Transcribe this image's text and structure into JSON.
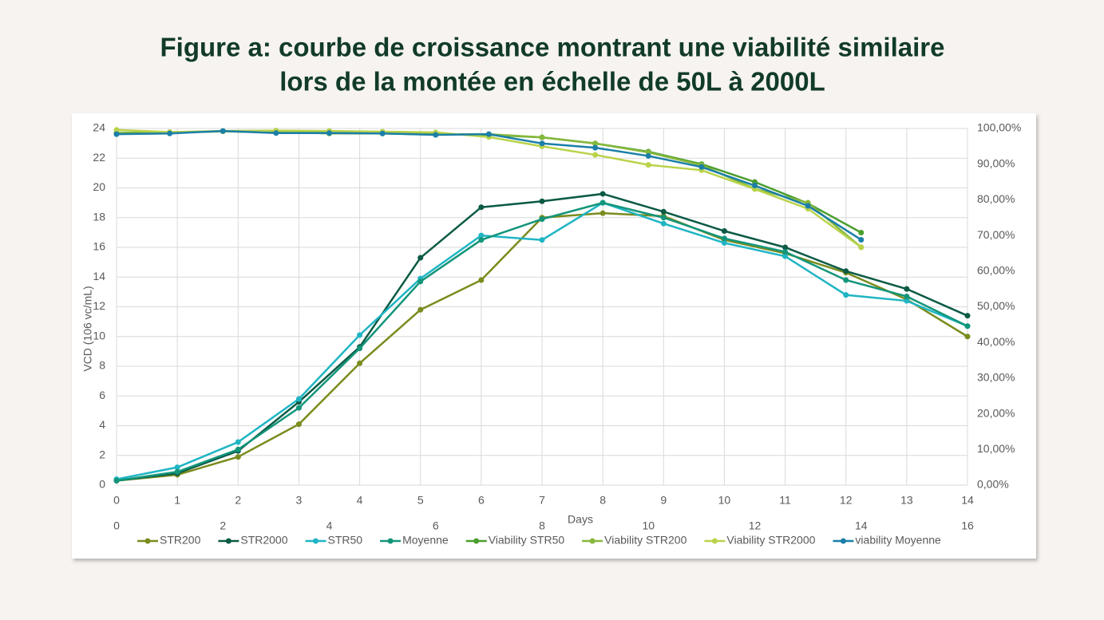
{
  "chart_data": {
    "type": "line",
    "title": [
      "Figure a: courbe de croissance montrant une viabilité similaire",
      "lors de la montée en échelle de 50L à 2000L"
    ],
    "ylabel": "VCD (106 vc/mL)",
    "xlabel": "Days",
    "x": [
      0,
      1,
      2,
      3,
      4,
      5,
      6,
      7,
      8,
      9,
      10,
      11,
      12,
      13,
      14
    ],
    "xlim": [
      0,
      14
    ],
    "xticks": [
      0,
      1,
      2,
      3,
      4,
      5,
      6,
      7,
      8,
      9,
      10,
      11,
      12,
      13,
      14
    ],
    "x2lim": [
      0,
      16
    ],
    "x2ticks": [
      0,
      2,
      4,
      6,
      8,
      10,
      12,
      14,
      16
    ],
    "ylim": [
      0,
      24
    ],
    "yticks": [
      0,
      2,
      4,
      6,
      8,
      10,
      12,
      14,
      16,
      18,
      20,
      22,
      24
    ],
    "y2lim": [
      0,
      100
    ],
    "y2ticks": [
      {
        "value": 0,
        "label": "0,00%"
      },
      {
        "value": 10,
        "label": "10,00%"
      },
      {
        "value": 20,
        "label": "20,00%"
      },
      {
        "value": 30,
        "label": "30,00%"
      },
      {
        "value": 40,
        "label": "40,00%"
      },
      {
        "value": 50,
        "label": "50,00%"
      },
      {
        "value": 60,
        "label": "60,00%"
      },
      {
        "value": 70,
        "label": "70,00%"
      },
      {
        "value": 80,
        "label": "80,00%"
      },
      {
        "value": 90,
        "label": "90,00%"
      },
      {
        "value": 100,
        "label": "100,00%"
      }
    ],
    "grid": true,
    "legend": "bottom",
    "series": [
      {
        "name": "STR200",
        "color": "#7a8c1e",
        "values": [
          0.3,
          0.7,
          1.9,
          4.1,
          8.2,
          11.8,
          13.8,
          18.0,
          18.3,
          18.1,
          16.5,
          15.6,
          14.3,
          12.5,
          10.0
        ]
      },
      {
        "name": "STR2000",
        "color": "#0b5a45",
        "values": [
          0.3,
          0.8,
          2.3,
          5.6,
          9.3,
          15.3,
          18.7,
          19.1,
          19.6,
          18.4,
          17.1,
          16.0,
          14.4,
          13.2,
          11.4
        ]
      },
      {
        "name": "STR50",
        "color": "#1fb5c4",
        "values": [
          0.4,
          1.2,
          2.9,
          5.8,
          10.1,
          13.9,
          16.8,
          16.5,
          19.0,
          17.6,
          16.3,
          15.4,
          12.8,
          12.4,
          10.7
        ]
      },
      {
        "name": "Moyenne",
        "color": "#13957a",
        "values": [
          0.3,
          0.9,
          2.4,
          5.2,
          9.2,
          13.7,
          16.5,
          17.9,
          19.0,
          18.0,
          16.6,
          15.7,
          13.8,
          12.7,
          10.7
        ]
      },
      {
        "name": "Viability STR50",
        "color": "#4b9e2e",
        "axis": "y2",
        "xaxis": "x2",
        "values": [
          98.7,
          98.9,
          99.2,
          98.9,
          98.8,
          98.6,
          98.5,
          98.2,
          97.5,
          95.8,
          93.5,
          90.0,
          85.0,
          79.0,
          70.8
        ]
      },
      {
        "name": "Viability STR200",
        "color": "#86b83c",
        "axis": "y2",
        "xaxis": "x2",
        "values": [
          98.8,
          98.9,
          99.2,
          99.0,
          98.6,
          98.6,
          98.3,
          98.4,
          97.5,
          95.8,
          93.3,
          89.7,
          83.1,
          79.2,
          66.7
        ]
      },
      {
        "name": "Viability STR2000",
        "color": "#b9d34a",
        "axis": "y2",
        "xaxis": "x2",
        "values": [
          99.6,
          99.0,
          99.3,
          99.4,
          99.3,
          99.1,
          98.9,
          97.6,
          95.0,
          92.6,
          89.8,
          88.3,
          83.0,
          77.5,
          66.7
        ]
      },
      {
        "name": "viability Moyenne",
        "color": "#1b7fa8",
        "axis": "y2",
        "xaxis": "x2",
        "values": [
          98.4,
          98.6,
          99.3,
          98.7,
          98.7,
          98.6,
          98.2,
          98.4,
          95.8,
          94.6,
          92.3,
          89.2,
          84.0,
          78.3,
          68.8
        ]
      }
    ]
  }
}
